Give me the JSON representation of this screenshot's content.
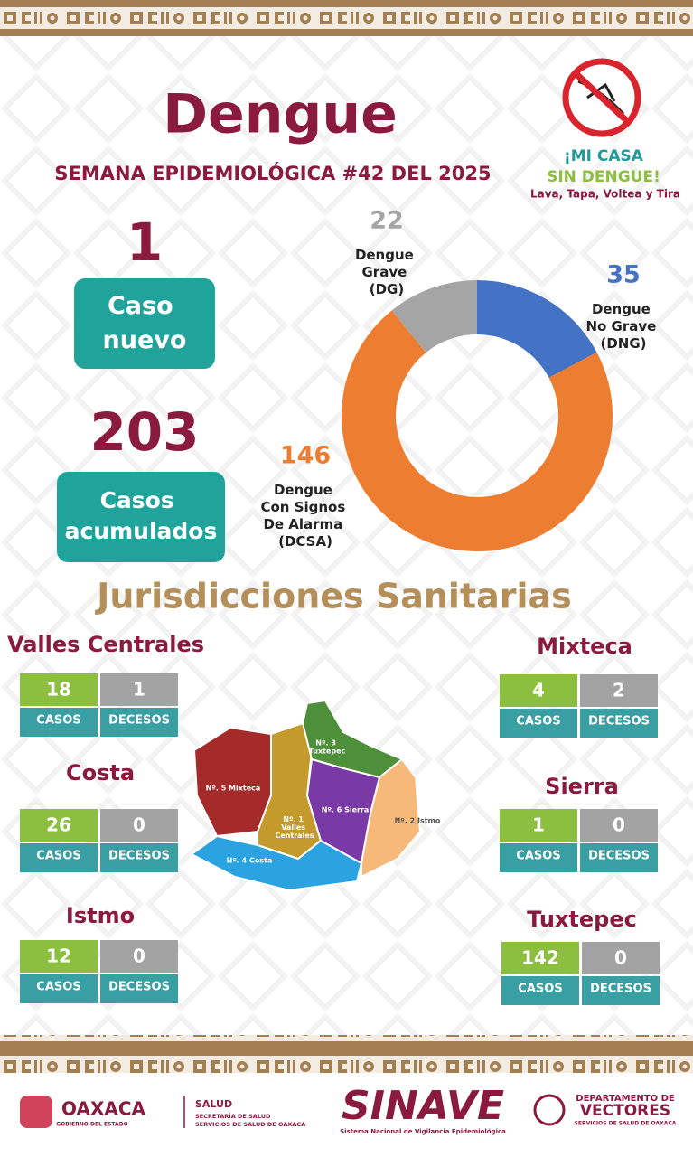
{
  "header": {
    "title": "Dengue",
    "subtitle": "SEMANA EPIDEMIOLÓGICA #42 DEL 2025"
  },
  "campaign": {
    "line1": "¡MI CASA",
    "line2": "SIN DENGUE!",
    "slogan": "Lava, Tapa, Voltea y Tira"
  },
  "summary": {
    "new": {
      "value": 1,
      "label": "Caso nuevo"
    },
    "total": {
      "value": 203,
      "label": "Casos acumulados"
    }
  },
  "chart_data": {
    "type": "donut",
    "categories": [
      "Dengue Grave (DG)",
      "Dengue No Grave (DNG)",
      "Dengue Con Signos De Alarma (DCSA)"
    ],
    "values": [
      22,
      35,
      146
    ],
    "colors": [
      "#a5a5a5",
      "#4472c4",
      "#ed7d31"
    ]
  },
  "section_title": "Jurisdicciones Sanitarias",
  "column_labels": {
    "cases": "CASOS",
    "deaths": "DECESOS"
  },
  "jurisdictions": [
    {
      "name": "Valles Centrales",
      "cases": 18,
      "deaths": 1
    },
    {
      "name": "Costa",
      "cases": 26,
      "deaths": 0
    },
    {
      "name": "Istmo",
      "cases": 12,
      "deaths": 0
    },
    {
      "name": "Mixteca",
      "cases": 4,
      "deaths": 2
    },
    {
      "name": "Sierra",
      "cases": 1,
      "deaths": 0
    },
    {
      "name": "Tuxtepec",
      "cases": 142,
      "deaths": 0
    }
  ],
  "map": {
    "regions": [
      "Nº. 5 Mixteca",
      "Nº. 1 Valles Centrales",
      "Nº. 3 Tuxtepec",
      "Nº. 6 Sierra",
      "Nº. 2 Istmo",
      "Nº. 4 Costa"
    ]
  },
  "footer": {
    "state": "OAXACA",
    "state_sub": "GOBIERNO DEL ESTADO",
    "health": "SALUD",
    "health_sub1": "SECRETARÍA DE SALUD",
    "health_sub2": "SERVICIOS DE SALUD DE OAXACA",
    "sinave": "SINAVE",
    "sinave_sub": "Sistema Nacional de Vigilancia Epidemiológica",
    "dept1": "DEPARTAMENTO DE",
    "dept2": "VECTORES",
    "dept_sub": "SERVICIOS DE SALUD DE OAXACA"
  }
}
